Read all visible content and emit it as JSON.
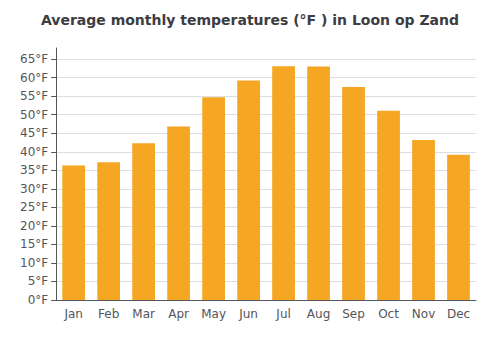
{
  "chart_data": {
    "type": "bar",
    "title": "Average monthly temperatures (°F ) in Loon op Zand",
    "categories": [
      "Jan",
      "Feb",
      "Mar",
      "Apr",
      "May",
      "Jun",
      "Jul",
      "Aug",
      "Sep",
      "Oct",
      "Nov",
      "Dec"
    ],
    "values": [
      36.3,
      37.2,
      42.3,
      46.8,
      54.7,
      59.2,
      63.1,
      63.0,
      57.5,
      51.1,
      43.2,
      39.2
    ],
    "color": "#F5A623",
    "ylim": [
      0,
      68
    ],
    "yticks": [
      {
        "value": 0,
        "label": "0°F"
      },
      {
        "value": 5,
        "label": "5°F"
      },
      {
        "value": 10,
        "label": "10°F"
      },
      {
        "value": 15,
        "label": "15°F"
      },
      {
        "value": 20,
        "label": "20°F"
      },
      {
        "value": 25,
        "label": "25°F"
      },
      {
        "value": 30,
        "label": "30°F"
      },
      {
        "value": 35,
        "label": "35°F"
      },
      {
        "value": 40,
        "label": "40°F"
      },
      {
        "value": 45,
        "label": "45°F"
      },
      {
        "value": 50,
        "label": "50°F"
      },
      {
        "value": 55,
        "label": "55°F"
      },
      {
        "value": 60,
        "label": "60°F"
      },
      {
        "value": 65,
        "label": "65°F"
      }
    ],
    "grid": true
  }
}
